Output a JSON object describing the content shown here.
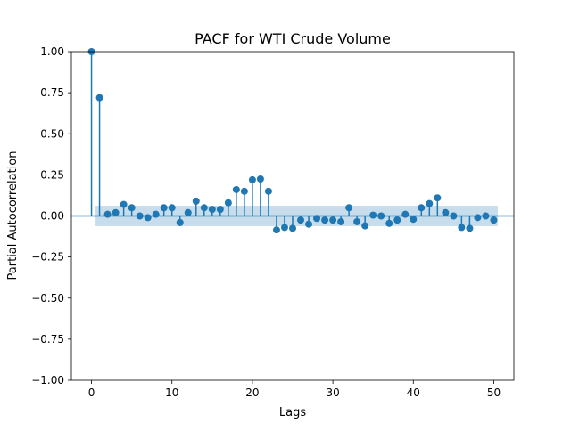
{
  "chart_data": {
    "type": "stem",
    "title": "PACF for WTI Crude Volume",
    "xlabel": "Lags",
    "ylabel": "Partial Autocorrelation",
    "xlim": [
      -2.5,
      52.5
    ],
    "ylim": [
      -1.0,
      1.0
    ],
    "xticks": [
      0,
      10,
      20,
      30,
      40,
      50
    ],
    "xtick_labels": [
      "0",
      "10",
      "20",
      "30",
      "40",
      "50"
    ],
    "yticks": [
      1.0,
      0.75,
      0.5,
      0.25,
      0.0,
      -0.25,
      -0.5,
      -0.75,
      -1.0
    ],
    "ytick_labels": [
      "1.00",
      "0.75",
      "0.50",
      "0.25",
      "0.00",
      "−0.25",
      "−0.50",
      "−0.75",
      "−1.00"
    ],
    "confidence_band": {
      "x_range": [
        0.5,
        50.5
      ],
      "lower": -0.062,
      "upper": 0.062
    },
    "lags": [
      0,
      1,
      2,
      3,
      4,
      5,
      6,
      7,
      8,
      9,
      10,
      11,
      12,
      13,
      14,
      15,
      16,
      17,
      18,
      19,
      20,
      21,
      22,
      23,
      24,
      25,
      26,
      27,
      28,
      29,
      30,
      31,
      32,
      33,
      34,
      35,
      36,
      37,
      38,
      39,
      40,
      41,
      42,
      43,
      44,
      45,
      46,
      47,
      48,
      49,
      50
    ],
    "values": [
      1.0,
      0.72,
      0.01,
      0.02,
      0.07,
      0.05,
      0.0,
      -0.01,
      0.01,
      0.05,
      0.05,
      -0.04,
      0.02,
      0.09,
      0.05,
      0.04,
      0.04,
      0.08,
      0.16,
      0.15,
      0.22,
      0.225,
      0.15,
      -0.085,
      -0.07,
      -0.075,
      -0.025,
      -0.05,
      -0.015,
      -0.025,
      -0.025,
      -0.035,
      0.05,
      -0.035,
      -0.06,
      0.005,
      0.0,
      -0.045,
      -0.025,
      0.01,
      -0.02,
      0.05,
      0.075,
      0.11,
      0.02,
      0.0,
      -0.07,
      -0.075,
      -0.01,
      0.0,
      -0.025
    ],
    "colors": {
      "series": "#1f77b4",
      "band": "#1f77b4",
      "axes": "#000000"
    }
  }
}
